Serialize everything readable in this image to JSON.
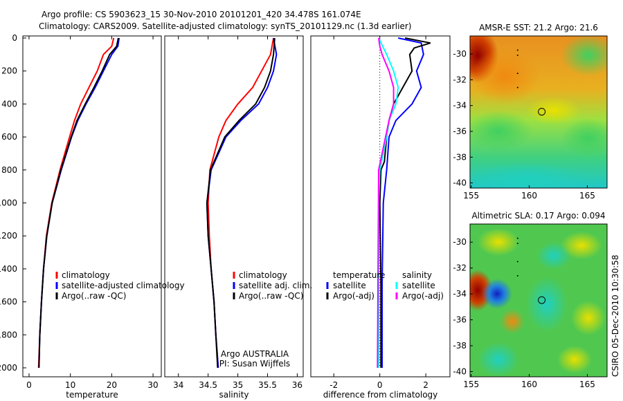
{
  "title_line1": "Argo profile: CS 5903623_15 30-Nov-2010 20101201_420 34.478S 161.074E",
  "title_line2": "Climatology: CARS2009. Satellite-adjusted climatology: synTS_20101129.nc (1.3d earlier)",
  "credit": "CSIRO 05-Dec-2010 10:30:58",
  "chart_data": [
    {
      "type": "line",
      "id": "temperature",
      "xlabel": "temperature",
      "ylabel": "",
      "xlim": [
        -1.5,
        32
      ],
      "ylim": [
        2060,
        0
      ],
      "xticks": [
        "0",
        "10",
        "20",
        "30"
      ],
      "xtick_values": [
        0,
        10,
        20,
        30
      ],
      "yticks": [
        "0",
        "200",
        "400",
        "600",
        "800",
        "1000",
        "1200",
        "1400",
        "1600",
        "1800",
        "2000"
      ],
      "ytick_values": [
        0,
        200,
        400,
        600,
        800,
        1000,
        1200,
        1400,
        1600,
        1800,
        2000
      ],
      "legend": [
        "climatology",
        "satellite-adjusted climatology",
        "Argo(..raw -QC)"
      ],
      "series": [
        {
          "name": "climatology",
          "color": "#ff0000",
          "depth": [
            0,
            50,
            100,
            200,
            300,
            400,
            500,
            600,
            800,
            1000,
            1200,
            1400,
            1600,
            1800,
            2000
          ],
          "values": [
            20.5,
            20,
            18,
            16.5,
            14.5,
            12.5,
            11,
            9.8,
            7.5,
            5.5,
            4.2,
            3.5,
            3,
            2.6,
            2.3
          ]
        },
        {
          "name": "satellite-adjusted climatology",
          "color": "#0000ff",
          "depth": [
            0,
            50,
            100,
            200,
            300,
            400,
            500,
            600,
            800,
            1000,
            1200,
            1400,
            1600,
            1800,
            2000
          ],
          "values": [
            21.8,
            21.5,
            20,
            18,
            16,
            13.8,
            11.8,
            10.3,
            7.8,
            5.6,
            4.3,
            3.5,
            3,
            2.6,
            2.4
          ]
        },
        {
          "name": "Argo(..raw -QC)",
          "color": "#000000",
          "depth": [
            0,
            50,
            100,
            200,
            300,
            400,
            500,
            600,
            800,
            1000,
            1200,
            1400,
            1600,
            1800,
            2000
          ],
          "values": [
            21.6,
            21.2,
            19.5,
            17.7,
            15.7,
            13.6,
            11.6,
            10.2,
            7.7,
            5.6,
            4.3,
            3.5,
            3,
            2.6,
            2.4
          ]
        }
      ]
    },
    {
      "type": "line",
      "id": "salinity",
      "xlabel": "salinity",
      "xlim": [
        33.77,
        36.1
      ],
      "ylim": [
        2060,
        0
      ],
      "xticks": [
        "34",
        "34.5",
        "35",
        "35.5",
        "36"
      ],
      "xtick_values": [
        34,
        34.5,
        35,
        35.5,
        36
      ],
      "legend": [
        "climatology",
        "satellite adj. clim.",
        "Argo(..raw -QC)"
      ],
      "annotation": [
        "Argo AUSTRALIA",
        "PI: Susan Wijffels"
      ],
      "series": [
        {
          "name": "climatology",
          "color": "#ff0000",
          "depth": [
            0,
            100,
            200,
            300,
            400,
            500,
            600,
            800,
            1000,
            1200,
            1400,
            1600,
            1800,
            2000
          ],
          "values": [
            35.6,
            35.55,
            35.4,
            35.25,
            35.0,
            34.8,
            34.68,
            34.53,
            34.5,
            34.52,
            34.55,
            34.6,
            34.63,
            34.67
          ]
        },
        {
          "name": "satellite adj. clim.",
          "color": "#0000ff",
          "depth": [
            0,
            100,
            200,
            300,
            400,
            500,
            600,
            800,
            1000,
            1200,
            1400,
            1600,
            1800,
            2000
          ],
          "values": [
            35.6,
            35.65,
            35.6,
            35.5,
            35.35,
            35.05,
            34.8,
            34.55,
            34.48,
            34.5,
            34.55,
            34.6,
            34.63,
            34.67
          ]
        },
        {
          "name": "Argo(..raw -QC)",
          "color": "#000000",
          "depth": [
            0,
            100,
            200,
            300,
            400,
            500,
            600,
            800,
            1000,
            1200,
            1400,
            1600,
            1800,
            2000
          ],
          "values": [
            35.62,
            35.6,
            35.55,
            35.45,
            35.3,
            35.02,
            34.78,
            34.54,
            34.48,
            34.5,
            34.55,
            34.6,
            34.63,
            34.66
          ]
        }
      ]
    },
    {
      "type": "line",
      "id": "difference",
      "xlabel": "difference from climatology",
      "xlim": [
        -3,
        3.05
      ],
      "ylim": [
        2060,
        0
      ],
      "xticks": [
        "-2",
        "0",
        "2"
      ],
      "xtick_values": [
        -2,
        0,
        2
      ],
      "legend_temperature_title": "temperature",
      "legend_salinity_title": "salinity",
      "legend": [
        "satellite",
        "Argo(-adj)",
        "satellite",
        "Argo(-adj)"
      ],
      "series": [
        {
          "name": "temperature satellite",
          "color": "#0000ff",
          "depth": [
            0,
            30,
            100,
            200,
            300,
            400,
            500,
            600,
            800,
            1000,
            1500,
            2000
          ],
          "values": [
            0.8,
            1.8,
            1.9,
            1.6,
            1.8,
            1.4,
            0.7,
            0.4,
            0.3,
            0.15,
            0.1,
            0.1
          ]
        },
        {
          "name": "temperature Argo(-adj)",
          "color": "#000000",
          "depth": [
            0,
            30,
            60,
            100,
            200,
            300,
            400,
            500,
            600,
            750,
            800,
            1000,
            1500,
            2000
          ],
          "values": [
            1.1,
            2.2,
            1.5,
            1.3,
            1.4,
            1.0,
            0.6,
            0.4,
            0.3,
            0.2,
            0.05,
            0.0,
            0.05,
            0.05
          ]
        },
        {
          "name": "salinity satellite",
          "color": "#00ffff",
          "depth": [
            0,
            100,
            200,
            300,
            400,
            500,
            600,
            800,
            1000,
            2000
          ],
          "values": [
            -0.05,
            0.3,
            0.6,
            0.8,
            0.7,
            0.4,
            0.3,
            0.0,
            -0.05,
            -0.05
          ]
        },
        {
          "name": "salinity Argo(-adj)",
          "color": "#ff00ff",
          "depth": [
            0,
            50,
            100,
            200,
            300,
            400,
            500,
            600,
            800,
            2000
          ],
          "values": [
            -0.05,
            0,
            0.1,
            0.4,
            0.6,
            0.6,
            0.4,
            0.25,
            -0.05,
            -0.1
          ]
        }
      ]
    },
    {
      "type": "heatmap",
      "id": "sst-map",
      "title": "AMSR-E SST: 21.2 Argo: 21.6",
      "xlim": [
        154.9,
        166.7
      ],
      "ylim": [
        -40.4,
        -28.6
      ],
      "xticks": [
        "155",
        "160",
        "165"
      ],
      "xtick_values": [
        155,
        160,
        165
      ],
      "yticks": [
        "-30",
        "-32",
        "-34",
        "-36",
        "-38",
        "-40"
      ],
      "ytick_values": [
        -30,
        -32,
        -34,
        -36,
        -38,
        -40
      ],
      "float_position": [
        161.074,
        -34.478
      ]
    },
    {
      "type": "heatmap",
      "id": "sla-map",
      "title": "Altimetric SLA: 0.17 Argo: 0.094",
      "xlim": [
        154.9,
        166.7
      ],
      "ylim": [
        -40.4,
        -28.6
      ],
      "xticks": [
        "155",
        "160",
        "165"
      ],
      "xtick_values": [
        155,
        160,
        165
      ],
      "yticks": [
        "-30",
        "-32",
        "-34",
        "-36",
        "-38",
        "-40"
      ],
      "ytick_values": [
        -30,
        -32,
        -34,
        -36,
        -38,
        -40
      ],
      "float_position": [
        161.074,
        -34.478
      ]
    }
  ]
}
